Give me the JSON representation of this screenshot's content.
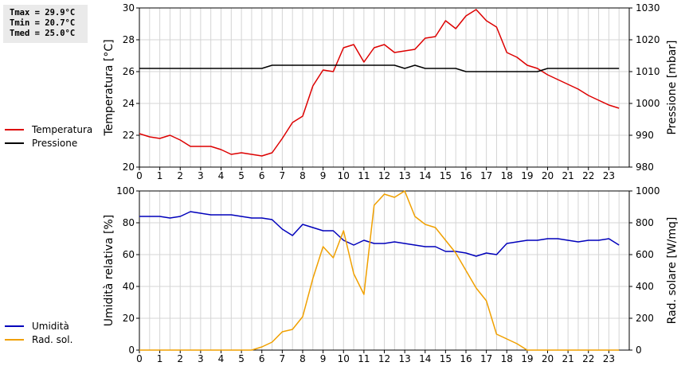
{
  "stats": {
    "tmax": "Tmax = 29.9°C",
    "tmin": "Tmin = 20.7°C",
    "tmed": "Tmed = 25.0°C"
  },
  "legend_top": [
    {
      "label": "Temperatura",
      "color": "#dd0000"
    },
    {
      "label": "Pressione",
      "color": "#000000"
    }
  ],
  "legend_bottom": [
    {
      "label": "Umidità",
      "color": "#0000bb"
    },
    {
      "label": "Rad. sol.",
      "color": "#f0a000"
    }
  ],
  "chart_data": [
    {
      "type": "line",
      "xlabel": "",
      "x_ticks": [
        0,
        1,
        2,
        3,
        4,
        5,
        6,
        7,
        8,
        9,
        10,
        11,
        12,
        13,
        14,
        15,
        16,
        17,
        18,
        19,
        20,
        21,
        22,
        23
      ],
      "xlim": [
        0,
        24
      ],
      "y_left": {
        "label": "Temperatura [°C]",
        "lim": [
          20,
          30
        ],
        "ticks": [
          20,
          22,
          24,
          26,
          28,
          30
        ]
      },
      "y_right": {
        "label": "Pressione [mbar]",
        "lim": [
          980,
          1030
        ],
        "ticks": [
          980,
          990,
          1000,
          1010,
          1020,
          1030
        ]
      },
      "grid": true,
      "series": [
        {
          "name": "Temperatura",
          "axis": "left",
          "color": "#dd0000",
          "x": [
            0,
            0.5,
            1,
            1.5,
            2,
            2.5,
            3,
            3.5,
            4,
            4.5,
            5,
            5.5,
            6,
            6.5,
            7,
            7.5,
            8,
            8.5,
            9,
            9.5,
            10,
            10.5,
            11,
            11.5,
            12,
            12.5,
            13,
            13.5,
            14,
            14.5,
            15,
            15.5,
            16,
            16.5,
            17,
            17.5,
            18,
            18.5,
            19,
            19.5,
            20,
            20.5,
            21,
            21.5,
            22,
            22.5,
            23,
            23.5
          ],
          "values": [
            22.1,
            21.9,
            21.8,
            22.0,
            21.7,
            21.3,
            21.3,
            21.3,
            21.1,
            20.8,
            20.9,
            20.8,
            20.7,
            20.9,
            21.8,
            22.8,
            23.2,
            25.1,
            26.1,
            26.0,
            27.5,
            27.7,
            26.6,
            27.5,
            27.7,
            27.2,
            27.3,
            27.4,
            28.1,
            28.2,
            29.2,
            28.7,
            29.5,
            29.9,
            29.2,
            28.8,
            27.2,
            26.9,
            26.4,
            26.2,
            25.8,
            25.5,
            25.2,
            24.9,
            24.5,
            24.2,
            23.9,
            23.7
          ]
        },
        {
          "name": "Pressione",
          "axis": "right",
          "color": "#000000",
          "x": [
            0,
            1,
            2,
            3,
            4,
            5,
            6,
            6.5,
            7,
            8,
            9,
            10,
            11,
            12,
            12.5,
            13,
            13.5,
            14,
            15,
            15.5,
            16,
            17,
            18,
            19,
            19.5,
            20,
            21,
            22,
            23,
            23.5
          ],
          "values": [
            1011,
            1011,
            1011,
            1011,
            1011,
            1011,
            1011,
            1012,
            1012,
            1012,
            1012,
            1012,
            1012,
            1012,
            1012,
            1011,
            1012,
            1011,
            1011,
            1011,
            1010,
            1010,
            1010,
            1010,
            1010,
            1011,
            1011,
            1011,
            1011,
            1011
          ]
        }
      ]
    },
    {
      "type": "line",
      "xlabel": "",
      "x_ticks": [
        0,
        1,
        2,
        3,
        4,
        5,
        6,
        7,
        8,
        9,
        10,
        11,
        12,
        13,
        14,
        15,
        16,
        17,
        18,
        19,
        20,
        21,
        22,
        23
      ],
      "xlim": [
        0,
        24
      ],
      "y_left": {
        "label": "Umidità relativa [%]",
        "lim": [
          0,
          100
        ],
        "ticks": [
          0,
          20,
          40,
          60,
          80,
          100
        ]
      },
      "y_right": {
        "label": "Rad. solare [W/mq]",
        "lim": [
          0,
          1000
        ],
        "ticks": [
          0,
          200,
          400,
          600,
          800,
          1000
        ]
      },
      "grid": true,
      "series": [
        {
          "name": "Umidità",
          "axis": "left",
          "color": "#0000bb",
          "x": [
            0,
            0.5,
            1,
            1.5,
            2,
            2.5,
            3,
            3.5,
            4,
            4.5,
            5,
            5.5,
            6,
            6.5,
            7,
            7.5,
            8,
            8.5,
            9,
            9.5,
            10,
            10.5,
            11,
            11.5,
            12,
            12.5,
            13,
            13.5,
            14,
            14.5,
            15,
            15.5,
            16,
            16.5,
            17,
            17.5,
            18,
            18.5,
            19,
            19.5,
            20,
            20.5,
            21,
            21.5,
            22,
            22.5,
            23,
            23.5
          ],
          "values": [
            84,
            84,
            84,
            83,
            84,
            87,
            86,
            85,
            85,
            85,
            84,
            83,
            83,
            82,
            76,
            72,
            79,
            77,
            75,
            75,
            69,
            66,
            69,
            67,
            67,
            68,
            67,
            66,
            65,
            65,
            62,
            62,
            61,
            59,
            61,
            60,
            67,
            68,
            69,
            69,
            70,
            70,
            69,
            68,
            69,
            69,
            70,
            66
          ]
        },
        {
          "name": "Rad. sol.",
          "axis": "right",
          "color": "#f0a000",
          "x": [
            0,
            1,
            2,
            3,
            4,
            5,
            5.5,
            6,
            6.5,
            7,
            7.5,
            8,
            8.5,
            9,
            9.5,
            10,
            10.5,
            11,
            11.5,
            12,
            12.5,
            13,
            13.5,
            14,
            14.5,
            15,
            15.5,
            16,
            16.5,
            17,
            17.5,
            18,
            18.5,
            19,
            20,
            21,
            22,
            23,
            23.5
          ],
          "values": [
            0,
            0,
            0,
            0,
            0,
            0,
            0,
            20,
            50,
            115,
            130,
            210,
            450,
            650,
            580,
            750,
            480,
            350,
            910,
            980,
            960,
            1000,
            840,
            790,
            770,
            690,
            610,
            500,
            390,
            310,
            100,
            70,
            40,
            0,
            0,
            0,
            0,
            0,
            0
          ]
        }
      ]
    }
  ]
}
